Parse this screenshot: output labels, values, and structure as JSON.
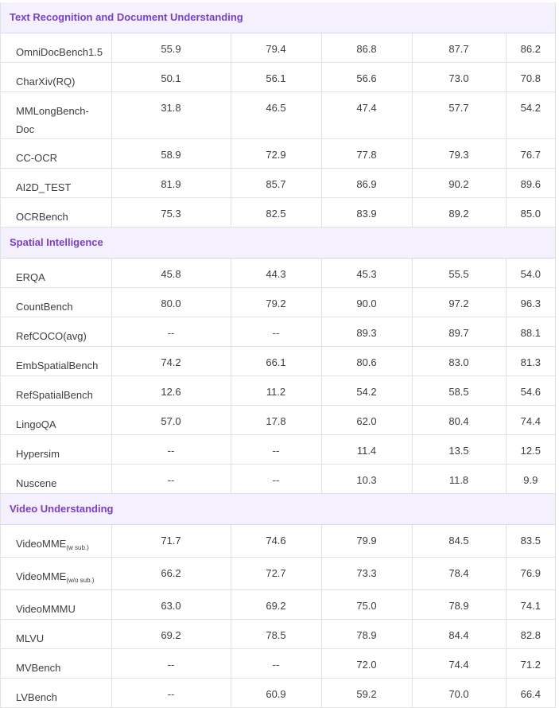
{
  "sections": [
    {
      "title": "Text Recognition and Document Understanding",
      "rows": [
        {
          "name": "OmniDocBench1.5",
          "sub": "",
          "values": [
            "55.9",
            "79.4",
            "86.8",
            "87.7",
            "86.2"
          ]
        },
        {
          "name": "CharXiv(RQ)",
          "sub": "",
          "values": [
            "50.1",
            "56.1",
            "56.6",
            "73.0",
            "70.8"
          ]
        },
        {
          "name": "MMLongBench-Doc",
          "sub": "",
          "values": [
            "31.8",
            "46.5",
            "47.4",
            "57.7",
            "54.2"
          ]
        },
        {
          "name": "CC-OCR",
          "sub": "",
          "values": [
            "58.9",
            "72.9",
            "77.8",
            "79.3",
            "76.7"
          ]
        },
        {
          "name": "AI2D_TEST",
          "sub": "",
          "values": [
            "81.9",
            "85.7",
            "86.9",
            "90.2",
            "89.6"
          ]
        },
        {
          "name": "OCRBench",
          "sub": "",
          "values": [
            "75.3",
            "82.5",
            "83.9",
            "89.2",
            "85.0"
          ]
        }
      ]
    },
    {
      "title": "Spatial Intelligence",
      "rows": [
        {
          "name": "ERQA",
          "sub": "",
          "values": [
            "45.8",
            "44.3",
            "45.3",
            "55.5",
            "54.0"
          ]
        },
        {
          "name": "CountBench",
          "sub": "",
          "values": [
            "80.0",
            "79.2",
            "90.0",
            "97.2",
            "96.3"
          ]
        },
        {
          "name": "RefCOCO(avg)",
          "sub": "",
          "values": [
            "--",
            "--",
            "89.3",
            "89.7",
            "88.1"
          ]
        },
        {
          "name": "EmbSpatialBench",
          "sub": "",
          "values": [
            "74.2",
            "66.1",
            "80.6",
            "83.0",
            "81.3"
          ]
        },
        {
          "name": "RefSpatialBench",
          "sub": "",
          "values": [
            "12.6",
            "11.2",
            "54.2",
            "58.5",
            "54.6"
          ]
        },
        {
          "name": "LingoQA",
          "sub": "",
          "values": [
            "57.0",
            "17.8",
            "62.0",
            "80.4",
            "74.4"
          ]
        },
        {
          "name": "Hypersim",
          "sub": "",
          "values": [
            "--",
            "--",
            "11.4",
            "13.5",
            "12.5"
          ]
        },
        {
          "name": "Nuscene",
          "sub": "",
          "values": [
            "--",
            "--",
            "10.3",
            "11.8",
            "9.9"
          ]
        }
      ]
    },
    {
      "title": "Video Understanding",
      "rows": [
        {
          "name": "VideoMME",
          "sub": "(w sub.)",
          "values": [
            "71.7",
            "74.6",
            "79.9",
            "84.5",
            "83.5"
          ]
        },
        {
          "name": "VideoMME",
          "sub": "(w/o sub.)",
          "values": [
            "66.2",
            "72.7",
            "73.3",
            "78.4",
            "76.9"
          ]
        },
        {
          "name": "VideoMMMU",
          "sub": "",
          "values": [
            "63.0",
            "69.2",
            "75.0",
            "78.9",
            "74.1"
          ]
        },
        {
          "name": "MLVU",
          "sub": "",
          "values": [
            "69.2",
            "78.5",
            "78.9",
            "84.4",
            "82.8"
          ]
        },
        {
          "name": "MVBench",
          "sub": "",
          "values": [
            "--",
            "--",
            "72.0",
            "74.4",
            "71.2"
          ]
        },
        {
          "name": "LVBench",
          "sub": "",
          "values": [
            "--",
            "60.9",
            "59.2",
            "70.0",
            "66.4"
          ]
        }
      ]
    }
  ]
}
